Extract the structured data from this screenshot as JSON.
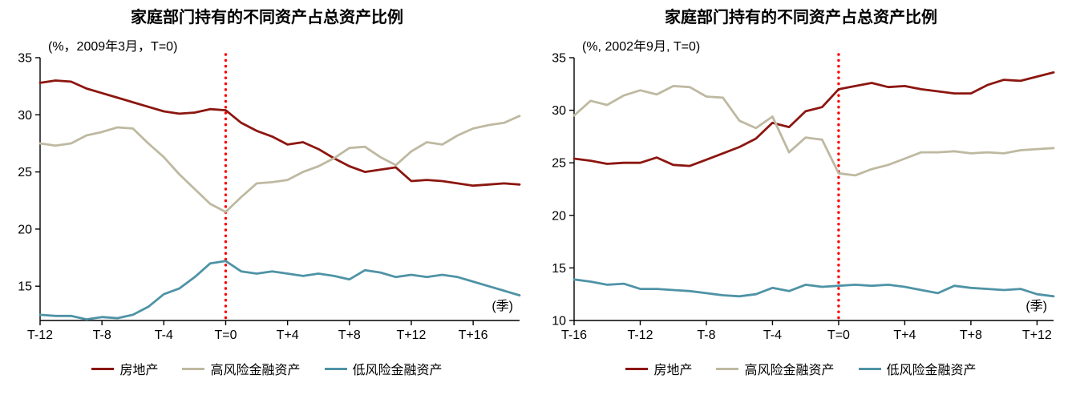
{
  "accent_colors": {
    "real_estate": "#8c1610",
    "high_risk": "#beb9a1",
    "low_risk": "#4f93a6",
    "event_line": "#ff0000",
    "axis": "#000000"
  },
  "chart_data": [
    {
      "type": "line",
      "title": "家庭部门持有的不同资产占总资产比例",
      "subtitle": "(%，2009年3月，T=0)",
      "unit_note": "(季)",
      "x_start": -12,
      "x_ticks": [
        -12,
        -8,
        -4,
        0,
        4,
        8,
        12,
        16
      ],
      "x_tick_labels": [
        "T-12",
        "T-8",
        "T-4",
        "T=0",
        "T+4",
        "T+8",
        "T+12",
        "T+16"
      ],
      "ylim": [
        12,
        35
      ],
      "y_ticks": [
        15,
        20,
        25,
        30,
        35
      ],
      "event_line_x": 0,
      "legend_position": "bottom",
      "grid": false,
      "series": [
        {
          "name": "房地产",
          "color": "#8c1610",
          "values": [
            32.8,
            33.0,
            32.9,
            32.3,
            31.9,
            31.5,
            31.1,
            30.7,
            30.3,
            30.1,
            30.2,
            30.5,
            30.4,
            29.3,
            28.6,
            28.1,
            27.4,
            27.6,
            27.0,
            26.2,
            25.5,
            25.0,
            25.2,
            25.4,
            24.2,
            24.3,
            24.2,
            24.0,
            23.8,
            23.9,
            24.0,
            23.9
          ]
        },
        {
          "name": "高风险金融资产",
          "color": "#beb9a1",
          "values": [
            27.5,
            27.3,
            27.5,
            28.2,
            28.5,
            28.9,
            28.8,
            27.5,
            26.3,
            24.8,
            23.5,
            22.2,
            21.5,
            22.8,
            24.0,
            24.1,
            24.3,
            25.0,
            25.5,
            26.2,
            27.1,
            27.2,
            26.3,
            25.6,
            26.8,
            27.6,
            27.4,
            28.2,
            28.8,
            29.1,
            29.3,
            29.9
          ]
        },
        {
          "name": "低风险金融资产",
          "color": "#4f93a6",
          "values": [
            12.5,
            12.4,
            12.4,
            12.1,
            12.3,
            12.2,
            12.5,
            13.2,
            14.3,
            14.8,
            15.8,
            17.0,
            17.2,
            16.3,
            16.1,
            16.3,
            16.1,
            15.9,
            16.1,
            15.9,
            15.6,
            16.4,
            16.2,
            15.8,
            16.0,
            15.8,
            16.0,
            15.8,
            15.4,
            15.0,
            14.6,
            14.2
          ]
        }
      ]
    },
    {
      "type": "line",
      "title": "家庭部门持有的不同资产占总资产比例",
      "subtitle": "(%, 2002年9月, T=0)",
      "unit_note": "(季)",
      "x_start": -16,
      "x_ticks": [
        -16,
        -12,
        -8,
        -4,
        0,
        4,
        8,
        12
      ],
      "x_tick_labels": [
        "T-16",
        "T-12",
        "T-8",
        "T-4",
        "T=0",
        "T+4",
        "T+8",
        "T+12"
      ],
      "ylim": [
        10,
        35
      ],
      "y_ticks": [
        10,
        15,
        20,
        25,
        30,
        35
      ],
      "event_line_x": 0,
      "legend_position": "bottom",
      "grid": false,
      "series": [
        {
          "name": "房地产",
          "color": "#8c1610",
          "values": [
            25.4,
            25.2,
            24.9,
            25.0,
            25.0,
            25.5,
            24.8,
            24.7,
            25.3,
            25.9,
            26.5,
            27.3,
            28.8,
            28.4,
            29.9,
            30.3,
            32.0,
            32.3,
            32.6,
            32.2,
            32.3,
            32.0,
            31.8,
            31.6,
            31.6,
            32.4,
            32.9,
            32.8,
            33.2,
            33.6
          ]
        },
        {
          "name": "高风险金融资产",
          "color": "#beb9a1",
          "values": [
            29.5,
            30.9,
            30.5,
            31.4,
            31.9,
            31.5,
            32.3,
            32.2,
            31.3,
            31.2,
            29.0,
            28.3,
            29.4,
            26.0,
            27.4,
            27.2,
            24.0,
            23.8,
            24.4,
            24.8,
            25.4,
            26.0,
            26.0,
            26.1,
            25.9,
            26.0,
            25.9,
            26.2,
            26.3,
            26.4
          ]
        },
        {
          "name": "低风险金融资产",
          "color": "#4f93a6",
          "values": [
            13.9,
            13.7,
            13.4,
            13.5,
            13.0,
            13.0,
            12.9,
            12.8,
            12.6,
            12.4,
            12.3,
            12.5,
            13.1,
            12.8,
            13.4,
            13.2,
            13.3,
            13.4,
            13.3,
            13.4,
            13.2,
            12.9,
            12.6,
            13.3,
            13.1,
            13.0,
            12.9,
            13.0,
            12.5,
            12.3
          ]
        }
      ]
    }
  ]
}
